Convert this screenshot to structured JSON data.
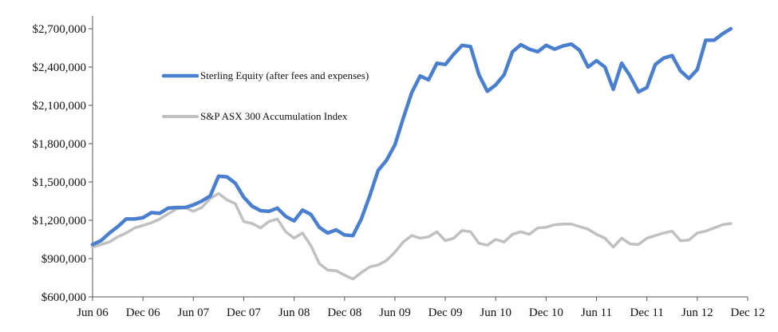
{
  "chart_data": {
    "type": "line",
    "title": "",
    "xlabel": "",
    "ylabel": "",
    "ylim": [
      600000,
      2800000
    ],
    "y_ticks": [
      600000,
      900000,
      1200000,
      1500000,
      1800000,
      2100000,
      2400000,
      2700000
    ],
    "y_tick_labels": [
      "$600,000",
      "$900,000",
      "$1,200,000",
      "$1,500,000",
      "$1,800,000",
      "$2,100,000",
      "$2,400,000",
      "$2,700,000"
    ],
    "x_tick_labels": [
      "Jun 06",
      "Dec 06",
      "Jun 07",
      "Dec 07",
      "Jun 08",
      "Dec 08",
      "Jun 09",
      "Dec 09",
      "Jun 10",
      "Dec 10",
      "Jun 11",
      "Dec 11",
      "Jun 12",
      "Dec 12"
    ],
    "x_tick_positions": [
      0,
      6,
      12,
      18,
      24,
      30,
      36,
      42,
      48,
      54,
      60,
      66,
      72,
      78
    ],
    "xlim": [
      0,
      78
    ],
    "grid": false,
    "legend_position": "upper-left-inside",
    "series": [
      {
        "name": "Sterling Equity (after fees and expenses)",
        "color": "#4a7fcf",
        "values": [
          1010000,
          1040000,
          1100000,
          1150000,
          1210000,
          1210000,
          1220000,
          1260000,
          1255000,
          1295000,
          1300000,
          1300000,
          1320000,
          1350000,
          1390000,
          1545000,
          1540000,
          1490000,
          1380000,
          1310000,
          1275000,
          1270000,
          1295000,
          1230000,
          1195000,
          1280000,
          1245000,
          1145000,
          1100000,
          1125000,
          1085000,
          1080000,
          1210000,
          1390000,
          1590000,
          1670000,
          1790000,
          2000000,
          2200000,
          2330000,
          2300000,
          2430000,
          2420000,
          2500000,
          2570000,
          2560000,
          2340000,
          2210000,
          2260000,
          2340000,
          2520000,
          2575000,
          2540000,
          2520000,
          2570000,
          2540000,
          2565000,
          2580000,
          2530000,
          2400000,
          2450000,
          2400000,
          2225000,
          2430000,
          2330000,
          2205000,
          2240000,
          2420000,
          2470000,
          2490000,
          2370000,
          2310000,
          2380000,
          2610000,
          2610000,
          2660000,
          2700000
        ]
      },
      {
        "name": "S&P ASX 300 Accumulation Index",
        "color": "#c0c0c0",
        "values": [
          990000,
          1010000,
          1030000,
          1070000,
          1100000,
          1140000,
          1160000,
          1180000,
          1210000,
          1250000,
          1290000,
          1300000,
          1270000,
          1300000,
          1370000,
          1410000,
          1360000,
          1330000,
          1190000,
          1175000,
          1140000,
          1190000,
          1210000,
          1110000,
          1060000,
          1100000,
          1000000,
          860000,
          810000,
          805000,
          770000,
          740000,
          790000,
          835000,
          850000,
          885000,
          950000,
          1030000,
          1080000,
          1060000,
          1070000,
          1110000,
          1040000,
          1060000,
          1120000,
          1110000,
          1020000,
          1005000,
          1050000,
          1030000,
          1090000,
          1110000,
          1090000,
          1140000,
          1145000,
          1165000,
          1170000,
          1170000,
          1150000,
          1130000,
          1090000,
          1060000,
          990000,
          1060000,
          1015000,
          1010000,
          1060000,
          1080000,
          1100000,
          1115000,
          1040000,
          1045000,
          1100000,
          1115000,
          1140000,
          1165000,
          1175000
        ]
      }
    ]
  }
}
